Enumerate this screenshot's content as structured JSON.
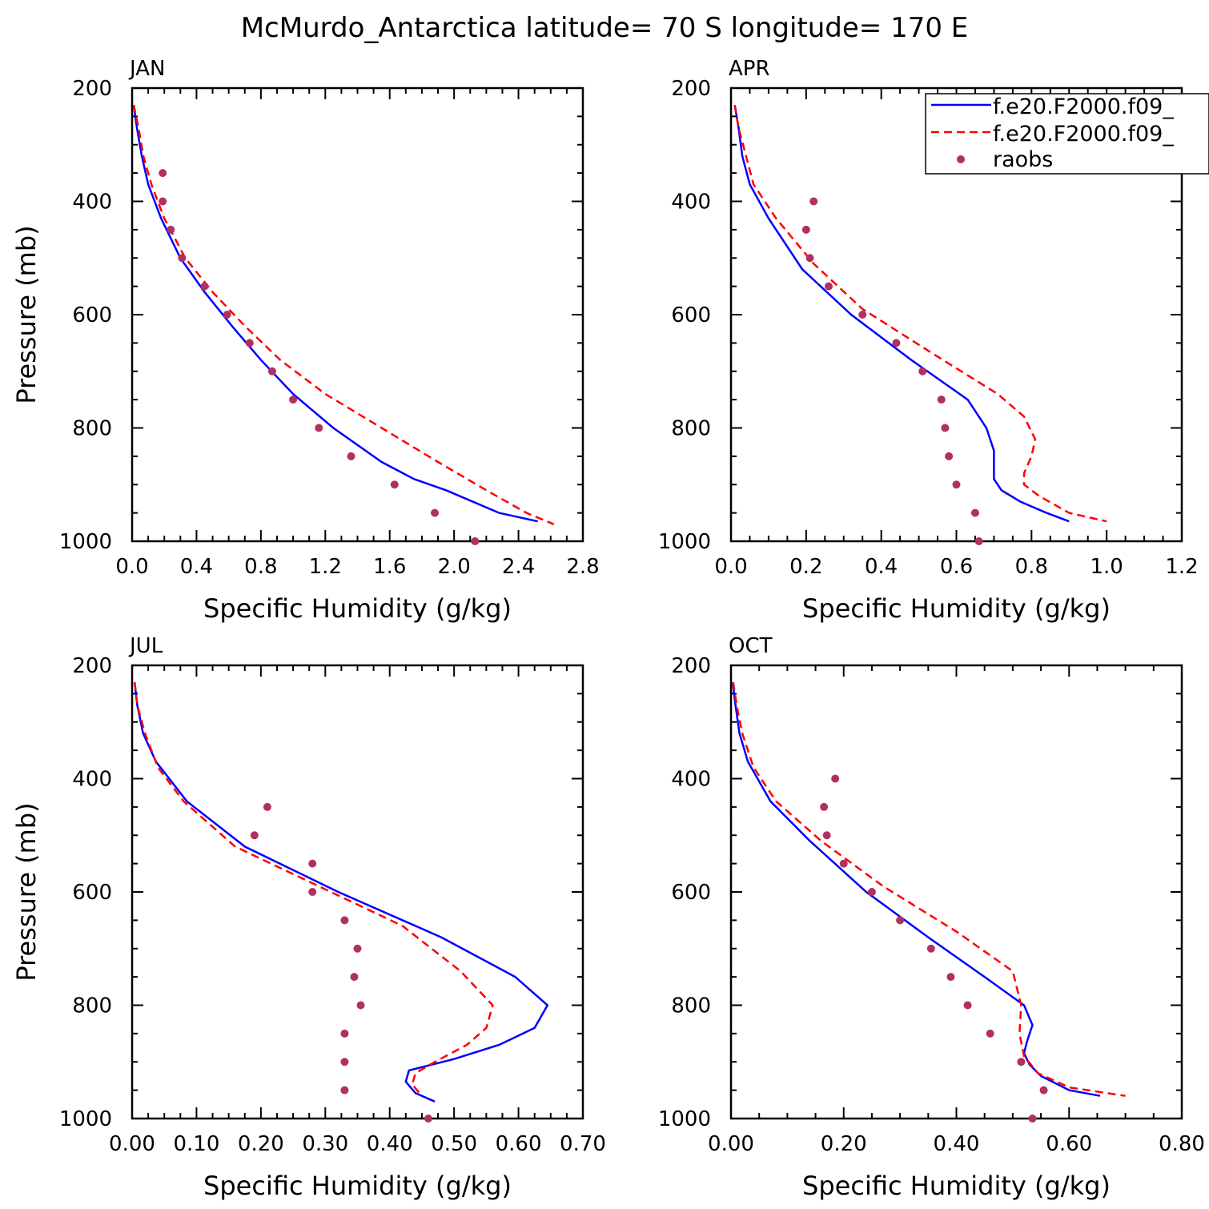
{
  "title": "McMurdo_Antarctica  latitude= 70 S longitude= 170 E",
  "legend": [
    {
      "label": "f.e20.F2000.f09_",
      "color": "#0000ff",
      "style": "solid"
    },
    {
      "label": "f.e20.F2000.f09_",
      "color": "#ff0000",
      "style": "dashed"
    },
    {
      "label": "raobs",
      "color": "#b03060",
      "style": "dots"
    }
  ],
  "chart_data": [
    {
      "type": "line",
      "panel": "JAN",
      "xlabel": "Specific Humidity (g/kg)",
      "ylabel": "Pressure (mb)",
      "xlim": [
        0,
        2.8
      ],
      "ylim": [
        200,
        1000
      ],
      "xticks": [
        "0.0",
        "0.4",
        "0.8",
        "1.2",
        "1.6",
        "2.0",
        "2.4",
        "2.8"
      ],
      "yticks": [
        "200",
        "400",
        "600",
        "800",
        "1000"
      ],
      "series": [
        {
          "x": [
            0.01,
            0.03,
            0.06,
            0.1,
            0.18,
            0.3,
            0.45,
            0.62,
            0.8,
            1.0,
            1.25,
            1.55,
            1.75,
            1.95,
            2.28,
            2.52
          ],
          "y": [
            230,
            270,
            320,
            370,
            430,
            500,
            560,
            620,
            680,
            740,
            800,
            860,
            890,
            910,
            950,
            965
          ]
        },
        {
          "x": [
            0.01,
            0.04,
            0.07,
            0.12,
            0.2,
            0.33,
            0.5,
            0.7,
            0.92,
            1.2,
            1.55,
            1.9,
            2.2,
            2.45,
            2.62
          ],
          "y": [
            230,
            270,
            320,
            370,
            430,
            500,
            560,
            620,
            680,
            740,
            800,
            860,
            910,
            950,
            970
          ]
        },
        {
          "x": [
            0.19,
            0.19,
            0.24,
            0.31,
            0.45,
            0.59,
            0.73,
            0.87,
            1.0,
            1.16,
            1.36,
            1.63,
            1.88,
            2.13
          ],
          "y": [
            350,
            400,
            450,
            500,
            550,
            600,
            650,
            700,
            750,
            800,
            850,
            900,
            950,
            1000
          ]
        }
      ]
    },
    {
      "type": "line",
      "panel": "APR",
      "xlabel": "Specific Humidity (g/kg)",
      "ylabel": "",
      "xlim": [
        0,
        1.2
      ],
      "ylim": [
        200,
        1000
      ],
      "xticks": [
        "0.0",
        "0.2",
        "0.4",
        "0.6",
        "0.8",
        "1.0",
        "1.2"
      ],
      "yticks": [
        "200",
        "400",
        "600",
        "800",
        "1000"
      ],
      "series": [
        {
          "x": [
            0.01,
            0.02,
            0.03,
            0.05,
            0.1,
            0.19,
            0.32,
            0.48,
            0.63,
            0.68,
            0.7,
            0.7,
            0.72,
            0.77,
            0.84,
            0.9
          ],
          "y": [
            230,
            270,
            320,
            370,
            430,
            520,
            600,
            680,
            750,
            800,
            840,
            890,
            910,
            930,
            950,
            965
          ]
        },
        {
          "x": [
            0.01,
            0.02,
            0.04,
            0.06,
            0.12,
            0.22,
            0.35,
            0.54,
            0.71,
            0.78,
            0.81,
            0.8,
            0.78,
            0.78,
            0.82,
            0.9,
            1.0
          ],
          "y": [
            230,
            270,
            320,
            370,
            430,
            510,
            590,
            670,
            740,
            780,
            820,
            850,
            880,
            900,
            920,
            950,
            965
          ]
        },
        {
          "x": [
            0.22,
            0.2,
            0.21,
            0.26,
            0.35,
            0.44,
            0.51,
            0.56,
            0.57,
            0.58,
            0.6,
            0.65,
            0.66
          ],
          "y": [
            400,
            450,
            500,
            550,
            600,
            650,
            700,
            750,
            800,
            850,
            900,
            950,
            1000
          ]
        }
      ]
    },
    {
      "type": "line",
      "panel": "JUL",
      "xlabel": "Specific Humidity (g/kg)",
      "ylabel": "Pressure (mb)",
      "xlim": [
        0,
        0.7
      ],
      "ylim": [
        200,
        1000
      ],
      "xticks": [
        "0.00",
        "0.10",
        "0.20",
        "0.30",
        "0.40",
        "0.50",
        "0.60",
        "0.70"
      ],
      "yticks": [
        "200",
        "400",
        "600",
        "800",
        "1000"
      ],
      "series": [
        {
          "x": [
            0.004,
            0.008,
            0.017,
            0.037,
            0.085,
            0.175,
            0.32,
            0.48,
            0.595,
            0.645,
            0.625,
            0.57,
            0.5,
            0.43,
            0.425,
            0.44,
            0.47
          ],
          "y": [
            230,
            270,
            320,
            370,
            440,
            520,
            600,
            680,
            750,
            800,
            840,
            870,
            895,
            915,
            935,
            955,
            970
          ]
        },
        {
          "x": [
            0.004,
            0.008,
            0.02,
            0.04,
            0.08,
            0.16,
            0.29,
            0.42,
            0.51,
            0.56,
            0.55,
            0.52,
            0.47,
            0.44,
            0.435,
            0.45
          ],
          "y": [
            230,
            270,
            320,
            380,
            440,
            520,
            590,
            660,
            740,
            800,
            840,
            870,
            900,
            920,
            940,
            960
          ]
        },
        {
          "x": [
            0.21,
            0.19,
            0.28,
            0.28,
            0.33,
            0.35,
            0.345,
            0.355,
            0.33,
            0.33,
            0.33,
            0.46
          ],
          "y": [
            450,
            500,
            550,
            600,
            650,
            700,
            750,
            800,
            850,
            900,
            950,
            1000
          ]
        }
      ]
    },
    {
      "type": "line",
      "panel": "OCT",
      "xlabel": "Specific Humidity (g/kg)",
      "ylabel": "",
      "xlim": [
        0,
        0.8
      ],
      "ylim": [
        200,
        1000
      ],
      "xticks": [
        "0.00",
        "0.20",
        "0.40",
        "0.60",
        "0.80"
      ],
      "yticks": [
        "200",
        "400",
        "600",
        "800",
        "1000"
      ],
      "series": [
        {
          "x": [
            0.003,
            0.008,
            0.015,
            0.03,
            0.07,
            0.14,
            0.24,
            0.35,
            0.45,
            0.52,
            0.535,
            0.525,
            0.52,
            0.53,
            0.55,
            0.6,
            0.655
          ],
          "y": [
            230,
            270,
            320,
            370,
            440,
            510,
            600,
            680,
            750,
            800,
            835,
            865,
            885,
            905,
            925,
            950,
            960
          ]
        },
        {
          "x": [
            0.004,
            0.01,
            0.02,
            0.04,
            0.08,
            0.16,
            0.27,
            0.4,
            0.5,
            0.515,
            0.512,
            0.52,
            0.545,
            0.6,
            0.7
          ],
          "y": [
            230,
            270,
            320,
            380,
            440,
            510,
            590,
            670,
            740,
            800,
            850,
            890,
            920,
            945,
            960
          ]
        },
        {
          "x": [
            0.185,
            0.165,
            0.17,
            0.2,
            0.25,
            0.3,
            0.355,
            0.39,
            0.42,
            0.46,
            0.515,
            0.555,
            0.535
          ],
          "y": [
            400,
            450,
            500,
            550,
            600,
            650,
            700,
            750,
            800,
            850,
            900,
            950,
            1000
          ]
        }
      ]
    }
  ]
}
